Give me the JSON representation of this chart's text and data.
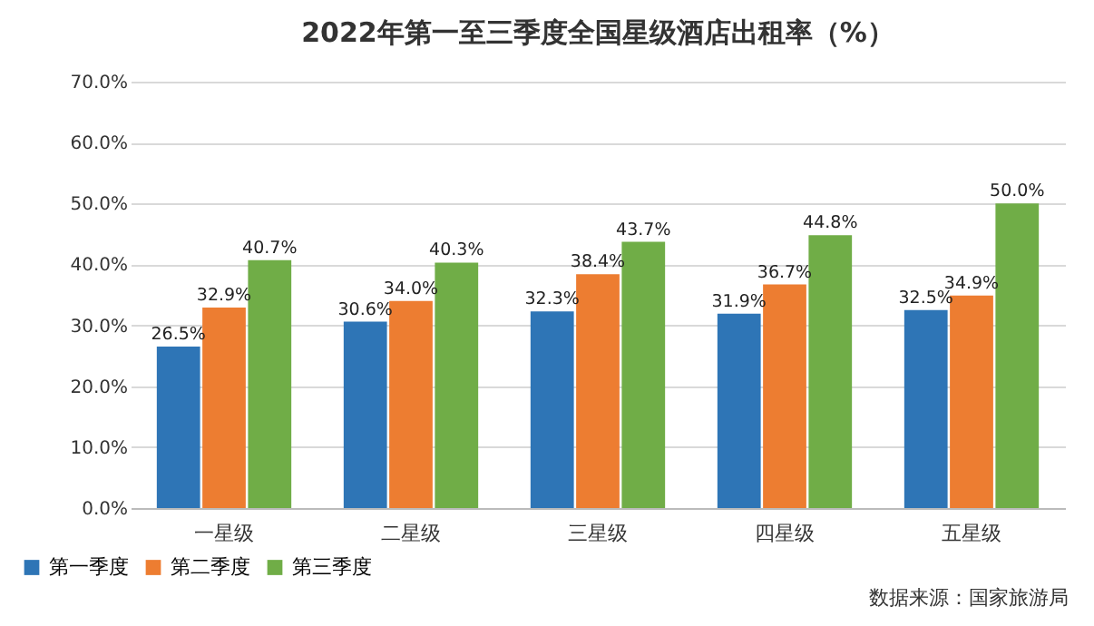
{
  "chart_data": {
    "type": "bar",
    "title": "2022年第一至三季度全国星级酒店出租率（%）",
    "categories": [
      "一星级",
      "二星级",
      "三星级",
      "四星级",
      "五星级"
    ],
    "series": [
      {
        "name": "第一季度",
        "color": "#2e75b6",
        "values": [
          26.5,
          30.6,
          32.3,
          31.9,
          32.5
        ],
        "value_labels": [
          "26.5%",
          "30.6%",
          "32.3%",
          "31.9%",
          "32.5%"
        ]
      },
      {
        "name": "第二季度",
        "color": "#ed7d31",
        "values": [
          32.9,
          34.0,
          38.4,
          36.7,
          34.9
        ],
        "value_labels": [
          "32.9%",
          "34.0%",
          "38.4%",
          "36.7%",
          "34.9%"
        ]
      },
      {
        "name": "第三季度",
        "color": "#70ad47",
        "values": [
          40.7,
          40.3,
          43.7,
          44.8,
          50.0
        ],
        "value_labels": [
          "40.7%",
          "40.3%",
          "43.7%",
          "44.8%",
          "50.0%"
        ]
      }
    ],
    "ylim": [
      0,
      70
    ],
    "yticks": [
      {
        "value": 0,
        "label": "0.0%"
      },
      {
        "value": 10,
        "label": "10.0%"
      },
      {
        "value": 20,
        "label": "20.0%"
      },
      {
        "value": 30,
        "label": "30.0%"
      },
      {
        "value": 40,
        "label": "40.0%"
      },
      {
        "value": 50,
        "label": "50.0%"
      },
      {
        "value": 60,
        "label": "60.0%"
      },
      {
        "value": 70,
        "label": "70.0%"
      }
    ],
    "grid": "y",
    "legend": "bottom left",
    "annotations": [
      "数据来源：国家旅游局"
    ]
  }
}
